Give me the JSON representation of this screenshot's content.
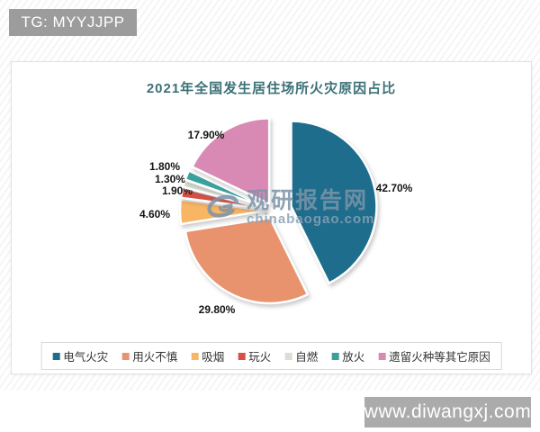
{
  "page": {
    "top_badge": "TG: MYYJJPP",
    "bottom_badge": "www.diwangxj.com"
  },
  "watermark": {
    "brand": "观研报告网",
    "domain": "chinabaogao.com",
    "color": "#7d94a9"
  },
  "chart_data": {
    "type": "pie",
    "title": "2021年全国发生居住场所火灾原因占比",
    "title_color": "#3b7076",
    "legend_position": "bottom",
    "start_angle_deg": 0,
    "direction": "clockwise",
    "exploded": true,
    "slices": [
      {
        "label": "电气火灾",
        "value": 42.7,
        "display": "42.70%",
        "color": "#1e6d8d"
      },
      {
        "label": "用火不慎",
        "value": 29.8,
        "display": "29.80%",
        "color": "#e8926e"
      },
      {
        "label": "吸烟",
        "value": 4.6,
        "display": "4.60%",
        "color": "#f8b564"
      },
      {
        "label": "玩火",
        "value": 1.9,
        "display": "1.90%",
        "color": "#d94f43"
      },
      {
        "label": "自燃",
        "value": 1.3,
        "display": "1.30%",
        "color": "#d9dfd4"
      },
      {
        "label": "放火",
        "value": 1.8,
        "display": "1.80%",
        "color": "#3aa09c"
      },
      {
        "label": "遗留火种等其它原因",
        "value": 17.9,
        "display": "17.90%",
        "color": "#d98ab4"
      }
    ]
  }
}
